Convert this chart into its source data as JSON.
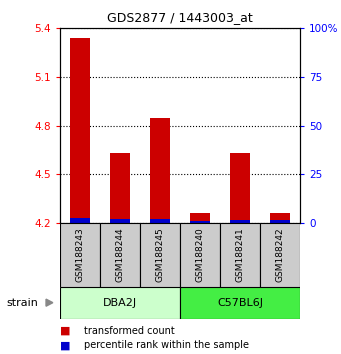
{
  "title": "GDS2877 / 1443003_at",
  "samples": [
    "GSM188243",
    "GSM188244",
    "GSM188245",
    "GSM188240",
    "GSM188241",
    "GSM188242"
  ],
  "groups": [
    {
      "name": "DBA2J",
      "indices": [
        0,
        1,
        2
      ],
      "color": "#ccffcc"
    },
    {
      "name": "C57BL6J",
      "indices": [
        3,
        4,
        5
      ],
      "color": "#44ee44"
    }
  ],
  "red_values": [
    5.34,
    4.63,
    4.85,
    4.26,
    4.63,
    4.26
  ],
  "blue_values": [
    4.228,
    4.226,
    4.227,
    4.213,
    4.218,
    4.218
  ],
  "base_value": 4.2,
  "ylim_left": [
    4.2,
    5.4
  ],
  "yticks_left": [
    4.2,
    4.5,
    4.8,
    5.1,
    5.4
  ],
  "ylim_right": [
    0,
    100
  ],
  "yticks_right": [
    0,
    25,
    50,
    75,
    100
  ],
  "ytick_labels_right": [
    "0",
    "25",
    "50",
    "75",
    "100%"
  ],
  "bar_color_red": "#cc0000",
  "bar_color_blue": "#0000cc",
  "background_color": "#ffffff",
  "sample_box_color": "#cccccc",
  "legend_red_label": "transformed count",
  "legend_blue_label": "percentile rank within the sample",
  "strain_label": "strain",
  "bar_width": 0.5,
  "fig_width": 3.41,
  "fig_height": 3.54,
  "dpi": 100
}
